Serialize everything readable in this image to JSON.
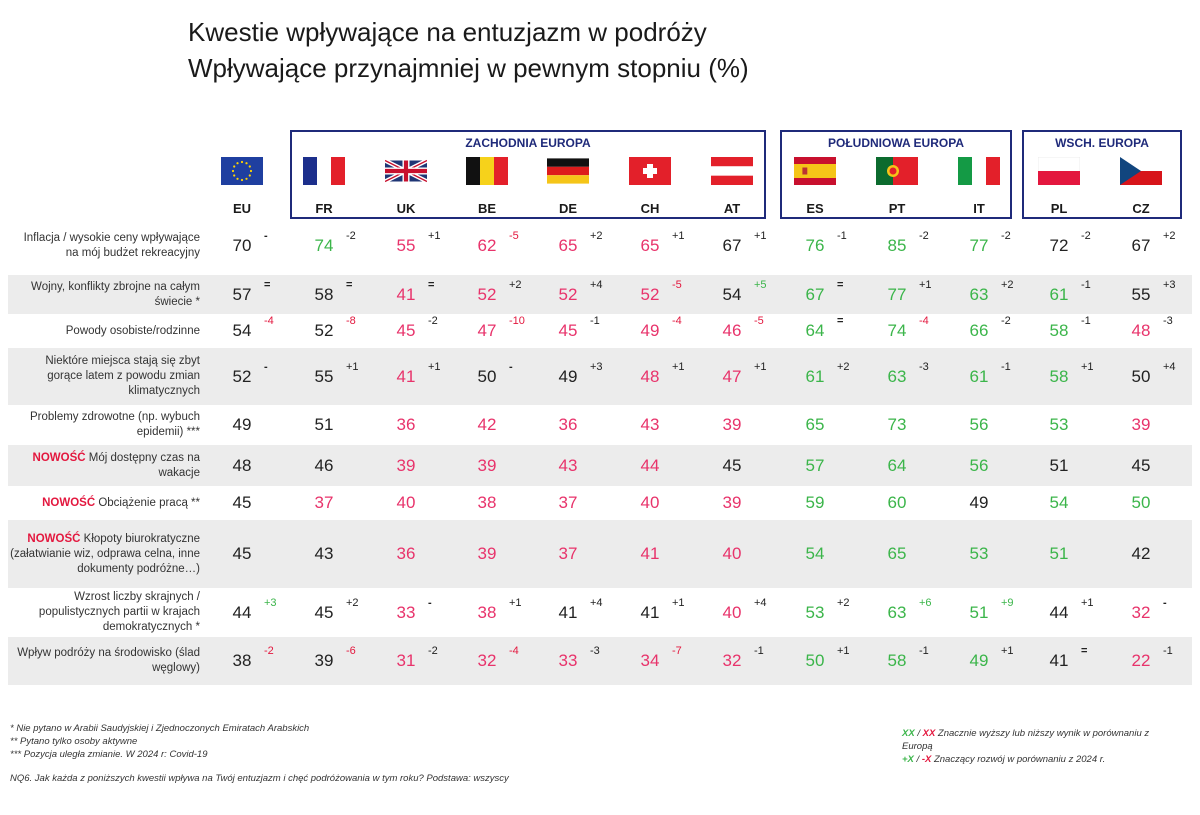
{
  "title": {
    "line1": "Kwestie wpływające na entuzjazm w podróży",
    "line2": "Wpływające przynajmniej w pewnym stopniu (%)"
  },
  "regions": [
    {
      "label": "ZACHODNIA EUROPA"
    },
    {
      "label": "POŁUDNIOWA EUROPA"
    },
    {
      "label": "WSCH. EUROPA"
    }
  ],
  "colors": {
    "higher": "#3bb54a",
    "lower": "#e8336b",
    "delta_negative": "#e3173e",
    "region_border": "#1f2a7a",
    "row_band": "#ececec"
  },
  "chart_data": {
    "type": "table",
    "countries": [
      "EU",
      "FR",
      "UK",
      "BE",
      "DE",
      "CH",
      "AT",
      "ES",
      "PT",
      "IT",
      "PL",
      "CZ"
    ],
    "country_flags": [
      "eu-flag-icon",
      "france-flag-icon",
      "uk-flag-icon",
      "belgium-flag-icon",
      "germany-flag-icon",
      "switzerland-flag-icon",
      "austria-flag-icon",
      "spain-flag-icon",
      "portugal-flag-icon",
      "italy-flag-icon",
      "poland-flag-icon",
      "czech-flag-icon"
    ],
    "rows": [
      {
        "new": "",
        "label": "Inflacja / wysokie ceny wpływające na mój budżet rekreacyjny",
        "values": [
          70,
          74,
          55,
          62,
          65,
          65,
          67,
          76,
          85,
          77,
          72,
          67
        ],
        "status": [
          "n",
          "g",
          "r",
          "r",
          "r",
          "r",
          "n",
          "g",
          "g",
          "g",
          "n",
          "n"
        ],
        "deltas": [
          "-",
          "-2",
          "+1",
          "-5",
          "+2",
          "+1",
          "+1",
          "-1",
          "-2",
          "-2",
          "-2",
          "+2"
        ]
      },
      {
        "new": "",
        "label": "Wojny, konflikty zbrojne na całym świecie *",
        "values": [
          57,
          58,
          41,
          52,
          52,
          52,
          54,
          67,
          77,
          63,
          61,
          55
        ],
        "status": [
          "n",
          "n",
          "r",
          "r",
          "r",
          "r",
          "n",
          "g",
          "g",
          "g",
          "g",
          "n"
        ],
        "deltas": [
          "=",
          "=",
          "=",
          "+2",
          "+4",
          "-5",
          "+5",
          "=",
          "+1",
          "+2",
          "-1",
          "+3"
        ]
      },
      {
        "new": "",
        "label": "Powody osobiste/rodzinne",
        "values": [
          54,
          52,
          45,
          47,
          45,
          49,
          46,
          64,
          74,
          66,
          58,
          48
        ],
        "status": [
          "n",
          "n",
          "r",
          "r",
          "r",
          "r",
          "r",
          "g",
          "g",
          "g",
          "g",
          "r"
        ],
        "deltas": [
          "-4",
          "-8",
          "-2",
          "-10",
          "-1",
          "-4",
          "-5",
          "=",
          "-4",
          "-2",
          "-1",
          "-3"
        ]
      },
      {
        "new": "",
        "label": "Niektóre miejsca stają się zbyt gorące latem z powodu zmian klimatycznych",
        "values": [
          52,
          55,
          41,
          50,
          49,
          48,
          47,
          61,
          63,
          61,
          58,
          50
        ],
        "status": [
          "n",
          "n",
          "r",
          "n",
          "n",
          "r",
          "r",
          "g",
          "g",
          "g",
          "g",
          "n"
        ],
        "deltas": [
          "-",
          "+1",
          "+1",
          "-",
          "+3",
          "+1",
          "+1",
          "+2",
          "-3",
          "-1",
          "+1",
          "+4"
        ]
      },
      {
        "new": "",
        "label": "Problemy zdrowotne (np. wybuch epidemii) ***",
        "values": [
          49,
          51,
          36,
          42,
          36,
          43,
          39,
          65,
          73,
          56,
          53,
          39
        ],
        "status": [
          "n",
          "n",
          "r",
          "r",
          "r",
          "r",
          "r",
          "g",
          "g",
          "g",
          "g",
          "r"
        ],
        "deltas": [
          "",
          "",
          "",
          "",
          "",
          "",
          "",
          "",
          "",
          "",
          "",
          ""
        ]
      },
      {
        "new": "NOWOŚĆ",
        "label": "Mój dostępny czas na wakacje",
        "values": [
          48,
          46,
          39,
          39,
          43,
          44,
          45,
          57,
          64,
          56,
          51,
          45
        ],
        "status": [
          "n",
          "n",
          "r",
          "r",
          "r",
          "r",
          "n",
          "g",
          "g",
          "g",
          "n",
          "n"
        ],
        "deltas": [
          "",
          "",
          "",
          "",
          "",
          "",
          "",
          "",
          "",
          "",
          "",
          ""
        ]
      },
      {
        "new": "NOWOŚĆ",
        "label": "Obciążenie pracą **",
        "values": [
          45,
          37,
          40,
          38,
          37,
          40,
          39,
          59,
          60,
          49,
          54,
          50
        ],
        "status": [
          "n",
          "r",
          "r",
          "r",
          "r",
          "r",
          "r",
          "g",
          "g",
          "n",
          "g",
          "g"
        ],
        "deltas": [
          "",
          "",
          "",
          "",
          "",
          "",
          "",
          "",
          "",
          "",
          "",
          ""
        ]
      },
      {
        "new": "NOWOŚĆ",
        "label": "Kłopoty biurokratyczne (załatwianie wiz, odprawa celna, inne dokumenty podróżne…)",
        "values": [
          45,
          43,
          36,
          39,
          37,
          41,
          40,
          54,
          65,
          53,
          51,
          42
        ],
        "status": [
          "n",
          "n",
          "r",
          "r",
          "r",
          "r",
          "r",
          "g",
          "g",
          "g",
          "g",
          "n"
        ],
        "deltas": [
          "",
          "",
          "",
          "",
          "",
          "",
          "",
          "",
          "",
          "",
          "",
          ""
        ]
      },
      {
        "new": "",
        "label": "Wzrost liczby skrajnych / populistycznych partii w krajach demokratycznych *",
        "values": [
          44,
          45,
          33,
          38,
          41,
          41,
          40,
          53,
          63,
          51,
          44,
          32
        ],
        "status": [
          "n",
          "n",
          "r",
          "r",
          "n",
          "n",
          "r",
          "g",
          "g",
          "g",
          "n",
          "r"
        ],
        "deltas": [
          "+3",
          "+2",
          "-",
          "+1",
          "+4",
          "+1",
          "+4",
          "+2",
          "+6",
          "+9",
          "+1",
          "-"
        ]
      },
      {
        "new": "",
        "label": "Wpływ podróży na środowisko (ślad węglowy)",
        "values": [
          38,
          39,
          31,
          32,
          33,
          34,
          32,
          50,
          58,
          49,
          41,
          22
        ],
        "status": [
          "n",
          "n",
          "r",
          "r",
          "r",
          "r",
          "r",
          "g",
          "g",
          "g",
          "n",
          "r"
        ],
        "deltas": [
          "-2",
          "-6",
          "-2",
          "-4",
          "-3",
          "-7",
          "-1",
          "+1",
          "-1",
          "+1",
          "=",
          "-1"
        ]
      }
    ]
  },
  "footnotes": [
    "* Nie pytano w Arabii Saudyjskiej i Zjednoczonych Emiratach Arabskich",
    "** Pytano tylko osoby aktywne",
    "*** Pozycja uległa zmianie. W 2024 r: Covid-19"
  ],
  "question": "NQ6. Jak każda z poniższych kwestii wpływa na Twój entuzjazm i chęć podróżowania w tym roku?  Podstawa: wszyscy",
  "legend": {
    "xx_green": "XX",
    "slash": " / ",
    "xx_red": "XX",
    "line1_text": " Znacznie wyższy lub niższy wynik w porównaniu z Europą",
    "x_green": "+X",
    "x_red": "-X",
    "line2_text": " Znaczący rozwój w porównaniu z 2024 r."
  }
}
